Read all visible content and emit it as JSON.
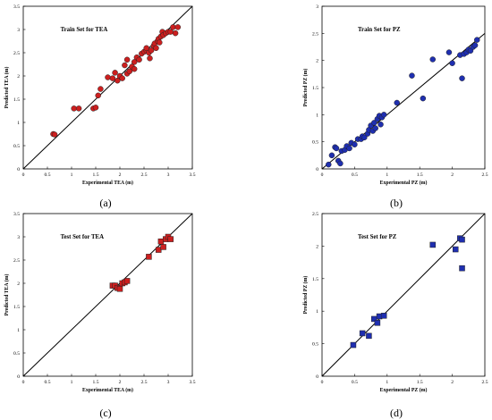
{
  "chart_data": [
    {
      "type": "scatter",
      "panel": "(a)",
      "title": "Train Set for TEA",
      "xlabel": "Experimental TEA (m)",
      "ylabel": "Predicted TEA (m)",
      "xlim": [
        0,
        3.5
      ],
      "ylim": [
        0,
        3.5
      ],
      "xticks": [
        "0",
        "0.5",
        "1",
        "1.5",
        "2",
        "2.5",
        "3",
        "3.5"
      ],
      "yticks": [
        "0",
        "0.5",
        "1",
        "1.5",
        "2",
        "2.5",
        "3",
        "3.5"
      ],
      "marker": "circle",
      "color": "#cc1f1f",
      "reference_line": "y = x",
      "points": [
        [
          0.62,
          0.75
        ],
        [
          0.65,
          0.74
        ],
        [
          1.05,
          1.3
        ],
        [
          1.15,
          1.3
        ],
        [
          1.45,
          1.3
        ],
        [
          1.5,
          1.32
        ],
        [
          1.55,
          1.58
        ],
        [
          1.6,
          1.72
        ],
        [
          1.75,
          1.97
        ],
        [
          1.85,
          1.95
        ],
        [
          1.9,
          2.07
        ],
        [
          1.95,
          1.9
        ],
        [
          2.0,
          2.0
        ],
        [
          2.05,
          1.95
        ],
        [
          2.1,
          2.23
        ],
        [
          2.15,
          2.05
        ],
        [
          2.15,
          2.35
        ],
        [
          2.2,
          2.1
        ],
        [
          2.25,
          2.2
        ],
        [
          2.3,
          2.15
        ],
        [
          2.3,
          2.3
        ],
        [
          2.35,
          2.4
        ],
        [
          2.4,
          2.35
        ],
        [
          2.45,
          2.48
        ],
        [
          2.5,
          2.52
        ],
        [
          2.55,
          2.55
        ],
        [
          2.55,
          2.6
        ],
        [
          2.6,
          2.5
        ],
        [
          2.62,
          2.38
        ],
        [
          2.65,
          2.55
        ],
        [
          2.7,
          2.65
        ],
        [
          2.72,
          2.7
        ],
        [
          2.75,
          2.6
        ],
        [
          2.78,
          2.75
        ],
        [
          2.8,
          2.8
        ],
        [
          2.82,
          2.72
        ],
        [
          2.85,
          2.85
        ],
        [
          2.88,
          2.95
        ],
        [
          2.9,
          2.88
        ],
        [
          2.95,
          2.92
        ],
        [
          3.0,
          2.95
        ],
        [
          3.05,
          2.95
        ],
        [
          3.1,
          3.05
        ],
        [
          3.15,
          2.92
        ],
        [
          3.2,
          3.05
        ]
      ]
    },
    {
      "type": "scatter",
      "panel": "(b)",
      "title": "Train Set for PZ",
      "xlabel": "Experimental PZ (m)",
      "ylabel": "Predicted PZ (m)",
      "xlim": [
        0,
        2.5
      ],
      "ylim": [
        0,
        3
      ],
      "xticks": [
        "0",
        "0.5",
        "1",
        "1.5",
        "2",
        "2.5"
      ],
      "yticks": [
        "0",
        "0.5",
        "1",
        "1.5",
        "2",
        "2.5",
        "3"
      ],
      "marker": "circle",
      "color": "#1f2fb0",
      "reference_line": "y = x",
      "points": [
        [
          0.1,
          0.08
        ],
        [
          0.15,
          0.25
        ],
        [
          0.2,
          0.4
        ],
        [
          0.22,
          0.38
        ],
        [
          0.25,
          0.15
        ],
        [
          0.28,
          0.1
        ],
        [
          0.3,
          0.33
        ],
        [
          0.35,
          0.35
        ],
        [
          0.38,
          0.42
        ],
        [
          0.42,
          0.38
        ],
        [
          0.45,
          0.48
        ],
        [
          0.5,
          0.45
        ],
        [
          0.55,
          0.55
        ],
        [
          0.6,
          0.55
        ],
        [
          0.62,
          0.6
        ],
        [
          0.65,
          0.58
        ],
        [
          0.7,
          0.65
        ],
        [
          0.72,
          0.72
        ],
        [
          0.75,
          0.8
        ],
        [
          0.78,
          0.7
        ],
        [
          0.8,
          0.85
        ],
        [
          0.82,
          0.75
        ],
        [
          0.85,
          0.92
        ],
        [
          0.88,
          0.98
        ],
        [
          0.9,
          0.82
        ],
        [
          0.92,
          0.95
        ],
        [
          0.95,
          1.0
        ],
        [
          1.15,
          1.22
        ],
        [
          1.38,
          1.72
        ],
        [
          1.55,
          1.3
        ],
        [
          1.7,
          2.02
        ],
        [
          1.95,
          2.15
        ],
        [
          2.0,
          1.95
        ],
        [
          2.12,
          2.1
        ],
        [
          2.15,
          1.67
        ],
        [
          2.18,
          2.12
        ],
        [
          2.22,
          2.15
        ],
        [
          2.25,
          2.2
        ],
        [
          2.28,
          2.18
        ],
        [
          2.32,
          2.25
        ],
        [
          2.35,
          2.28
        ],
        [
          2.38,
          2.38
        ]
      ]
    },
    {
      "type": "scatter",
      "panel": "(c)",
      "title": "Test Set for TEA",
      "xlabel": "Experimental TEA (m)",
      "ylabel": "Predicted TEA (m)",
      "xlim": [
        0,
        3.5
      ],
      "ylim": [
        0,
        3.5
      ],
      "xticks": [
        "0",
        "0.5",
        "1",
        "1.5",
        "2",
        "2.5",
        "3",
        "3.5"
      ],
      "yticks": [
        "0",
        "0.5",
        "1",
        "1.5",
        "2",
        "2.5",
        "3",
        "3.5"
      ],
      "marker": "square",
      "color": "#cc1f1f",
      "reference_line": "y = x",
      "points": [
        [
          1.85,
          1.95
        ],
        [
          1.9,
          1.95
        ],
        [
          1.95,
          1.9
        ],
        [
          2.0,
          1.88
        ],
        [
          2.05,
          2.0
        ],
        [
          2.1,
          2.02
        ],
        [
          2.15,
          2.05
        ],
        [
          2.6,
          2.57
        ],
        [
          2.8,
          2.72
        ],
        [
          2.85,
          2.9
        ],
        [
          2.9,
          2.78
        ],
        [
          2.95,
          2.95
        ],
        [
          3.0,
          3.0
        ],
        [
          3.05,
          2.95
        ]
      ]
    },
    {
      "type": "scatter",
      "panel": "(d)",
      "title": "Test Set for PZ",
      "xlabel": "Experimental PZ (m)",
      "ylabel": "Predicted PZ (m)",
      "xlim": [
        0,
        2.5
      ],
      "ylim": [
        0,
        2.5
      ],
      "xticks": [
        "0",
        "0.5",
        "1",
        "1.5",
        "2",
        "2.5"
      ],
      "yticks": [
        "0",
        "0.5",
        "1",
        "1.5",
        "2",
        "2.5"
      ],
      "marker": "square",
      "color": "#1f2fb0",
      "reference_line": "y = x",
      "points": [
        [
          0.48,
          0.48
        ],
        [
          0.62,
          0.66
        ],
        [
          0.72,
          0.62
        ],
        [
          0.8,
          0.88
        ],
        [
          0.85,
          0.82
        ],
        [
          0.88,
          0.92
        ],
        [
          0.95,
          0.93
        ],
        [
          1.7,
          2.02
        ],
        [
          2.05,
          1.95
        ],
        [
          2.12,
          2.12
        ],
        [
          2.15,
          2.1
        ],
        [
          2.15,
          1.66
        ]
      ]
    }
  ]
}
